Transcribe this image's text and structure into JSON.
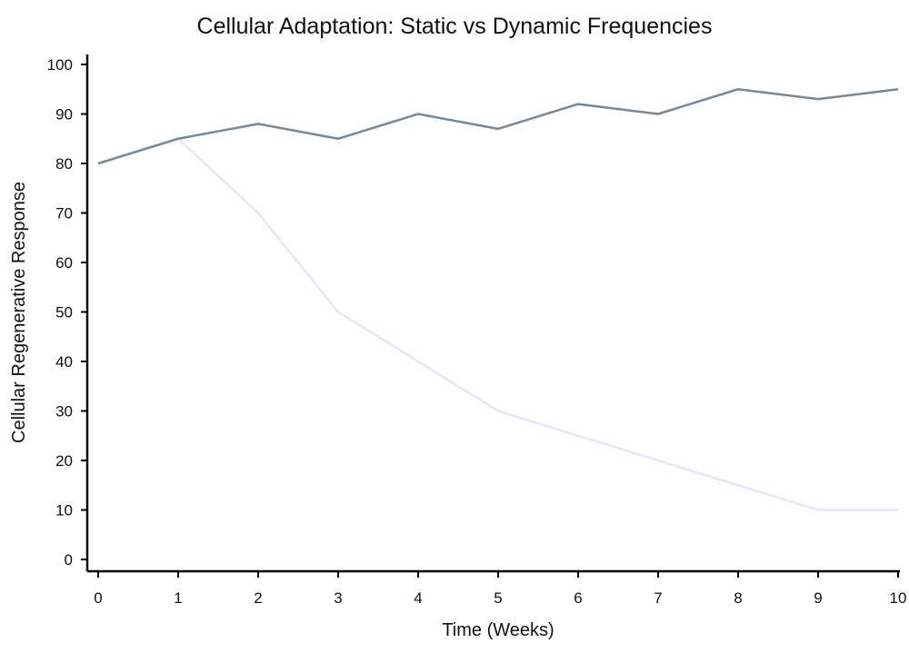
{
  "chart_data": {
    "type": "line",
    "title": "Cellular Adaptation: Static vs Dynamic Frequencies",
    "xlabel": "Time (Weeks)",
    "ylabel": "Cellular Regenerative Response",
    "x": [
      0,
      1,
      2,
      3,
      4,
      5,
      6,
      7,
      8,
      9,
      10
    ],
    "xlim": [
      0,
      10
    ],
    "ylim": [
      0,
      100
    ],
    "xticks": [
      0,
      1,
      2,
      3,
      4,
      5,
      6,
      7,
      8,
      9,
      10
    ],
    "yticks": [
      0,
      10,
      20,
      30,
      40,
      50,
      60,
      70,
      80,
      90,
      100
    ],
    "grid": false,
    "series": [
      {
        "values": [
          80,
          85,
          70,
          50,
          40,
          30,
          25,
          20,
          15,
          10,
          10
        ],
        "color": "#e6e6fa"
      },
      {
        "values": [
          80,
          85,
          88,
          85,
          90,
          87,
          92,
          90,
          95,
          93,
          95
        ],
        "color": "#778899"
      }
    ]
  }
}
